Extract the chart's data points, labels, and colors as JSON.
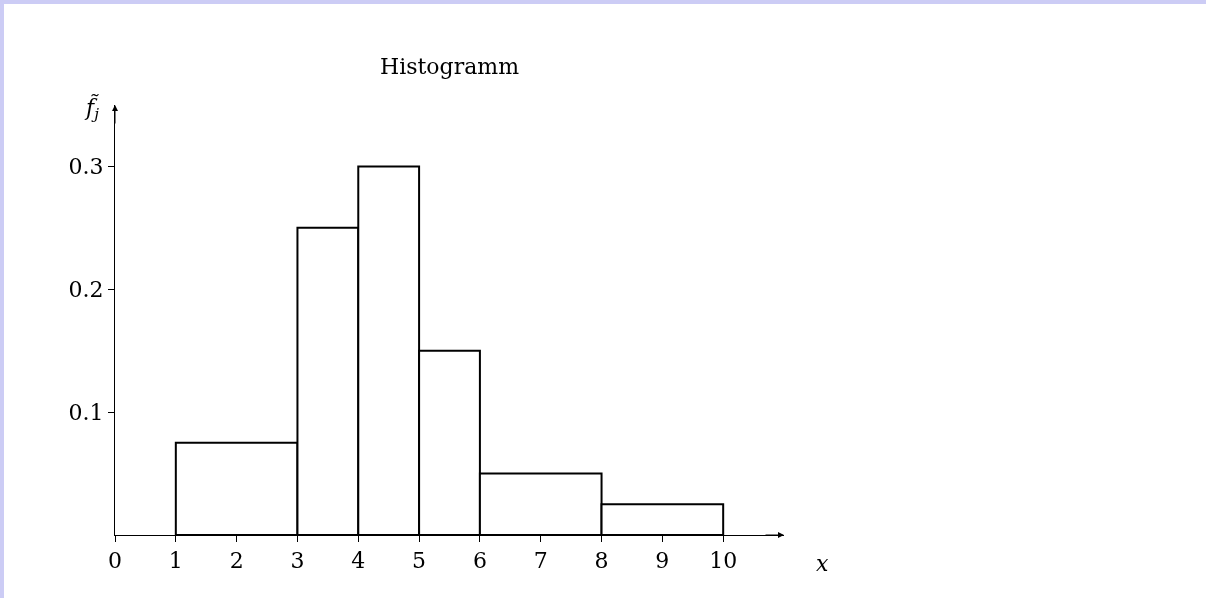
{
  "chart_data": {
    "type": "histogram",
    "title": "Histogramm",
    "xlabel": "x",
    "ylabel": "f̃$_{j}$",
    "bins": [
      1,
      3,
      4,
      5,
      6,
      8,
      10
    ],
    "values": [
      0.075,
      0.25,
      0.3,
      0.15,
      0.05,
      0.025
    ],
    "color": "#ffffff",
    "xlim": [
      0,
      11
    ],
    "xticks": [
      0,
      1,
      2,
      3,
      4,
      5,
      6,
      7,
      8,
      9,
      10
    ],
    "ylim": [
      0,
      0.35
    ],
    "yticks": [
      0.1,
      0.2,
      0.3
    ]
  }
}
